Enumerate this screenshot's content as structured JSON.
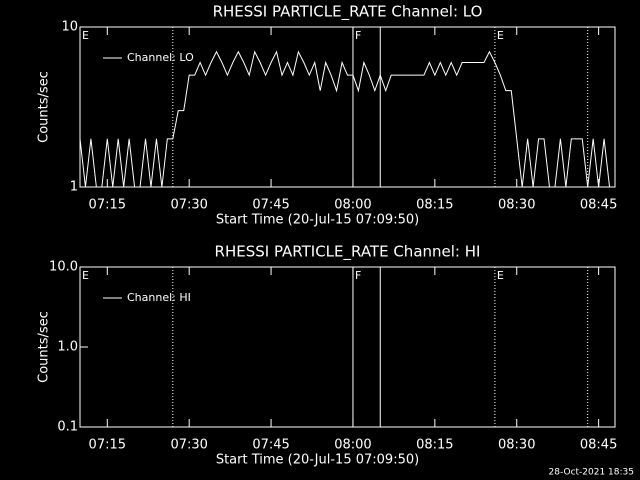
{
  "chart_data": [
    {
      "type": "line",
      "title": "RHESSI PARTICLE_RATE Channel: LO",
      "xlabel": "Start Time (20-Jul-15 07:09:50)",
      "ylabel": "Counts/sec",
      "log_y": true,
      "ylim": [
        1,
        10
      ],
      "yticks": [
        1,
        10
      ],
      "xlim": [
        "07:10",
        "08:48"
      ],
      "xticks": [
        "07:15",
        "07:30",
        "07:45",
        "08:00",
        "08:15",
        "08:30",
        "08:45"
      ],
      "x": [
        "07:10",
        "07:11",
        "07:12",
        "07:13",
        "07:14",
        "07:15",
        "07:16",
        "07:17",
        "07:18",
        "07:19",
        "07:20",
        "07:21",
        "07:22",
        "07:23",
        "07:24",
        "07:25",
        "07:26",
        "07:27",
        "07:28",
        "07:29",
        "07:30",
        "07:31",
        "07:32",
        "07:33",
        "07:34",
        "07:35",
        "07:36",
        "07:37",
        "07:38",
        "07:39",
        "07:40",
        "07:41",
        "07:42",
        "07:43",
        "07:44",
        "07:45",
        "07:46",
        "07:47",
        "07:48",
        "07:49",
        "07:50",
        "07:51",
        "07:52",
        "07:53",
        "07:54",
        "07:55",
        "07:56",
        "07:57",
        "07:58",
        "07:59",
        "08:00",
        "08:01",
        "08:02",
        "08:03",
        "08:04",
        "08:05",
        "08:06",
        "08:07",
        "08:08",
        "08:09",
        "08:10",
        "08:11",
        "08:12",
        "08:13",
        "08:14",
        "08:15",
        "08:16",
        "08:17",
        "08:18",
        "08:19",
        "08:20",
        "08:21",
        "08:22",
        "08:23",
        "08:24",
        "08:25",
        "08:26",
        "08:27",
        "08:28",
        "08:29",
        "08:30",
        "08:31",
        "08:32",
        "08:33",
        "08:34",
        "08:35",
        "08:36",
        "08:37",
        "08:38",
        "08:39",
        "08:40",
        "08:41",
        "08:42",
        "08:43",
        "08:44",
        "08:45",
        "08:46",
        "08:47"
      ],
      "series": [
        {
          "name": "Channel: LO",
          "color": "#ffffff",
          "values": [
            2,
            1,
            2,
            1,
            1,
            2,
            1,
            2,
            1,
            2,
            1,
            1,
            2,
            1,
            2,
            1,
            2,
            2,
            3,
            3,
            5,
            5,
            6,
            5,
            6,
            7,
            6,
            5,
            6,
            7,
            6,
            5,
            7,
            6,
            5,
            6,
            7,
            5,
            6,
            5,
            7,
            6,
            5,
            6,
            4,
            6,
            5,
            4,
            6,
            5,
            5,
            4,
            6,
            5,
            4,
            5,
            4,
            5,
            5,
            5,
            5,
            5,
            5,
            5,
            6,
            5,
            6,
            5,
            6,
            5,
            6,
            6,
            6,
            6,
            6,
            7,
            6,
            5,
            4,
            4,
            2,
            1,
            2,
            1,
            2,
            2,
            1,
            1,
            2,
            1,
            2,
            2,
            2,
            1,
            2,
            1,
            2,
            1
          ]
        }
      ],
      "flags": [
        {
          "x": "07:10",
          "label": "E"
        },
        {
          "x": "08:00",
          "label": "F"
        },
        {
          "x": "08:26",
          "label": "E"
        }
      ],
      "vlines": [
        {
          "x": "07:27",
          "style": "dotted"
        },
        {
          "x": "08:00",
          "style": "solid"
        },
        {
          "x": "08:05",
          "style": "solid"
        },
        {
          "x": "08:26",
          "style": "dotted"
        },
        {
          "x": "08:43",
          "style": "dotted"
        }
      ]
    },
    {
      "type": "line",
      "title": "RHESSI PARTICLE_RATE Channel: HI",
      "xlabel": "Start Time (20-Jul-15 07:09:50)",
      "ylabel": "Counts/sec",
      "log_y": true,
      "ylim": [
        0.1,
        10
      ],
      "yticks": [
        0.1,
        {
          "value": 1,
          "label": "1.0"
        },
        {
          "value": 10,
          "label": "10.0"
        }
      ],
      "xlim": [
        "07:10",
        "08:48"
      ],
      "xticks": [
        "07:15",
        "07:30",
        "07:45",
        "08:00",
        "08:15",
        "08:30",
        "08:45"
      ],
      "x": [],
      "series": [
        {
          "name": "Channel: HI",
          "color": "#ffffff",
          "values": []
        }
      ],
      "flags": [
        {
          "x": "07:10",
          "label": "E"
        },
        {
          "x": "08:00",
          "label": "F"
        },
        {
          "x": "08:26",
          "label": "E"
        }
      ],
      "vlines": [
        {
          "x": "07:27",
          "style": "dotted"
        },
        {
          "x": "08:00",
          "style": "solid"
        },
        {
          "x": "08:05",
          "style": "solid"
        },
        {
          "x": "08:26",
          "style": "dotted"
        },
        {
          "x": "08:43",
          "style": "dotted"
        }
      ]
    }
  ],
  "footer": "28-Oct-2021 18:35"
}
